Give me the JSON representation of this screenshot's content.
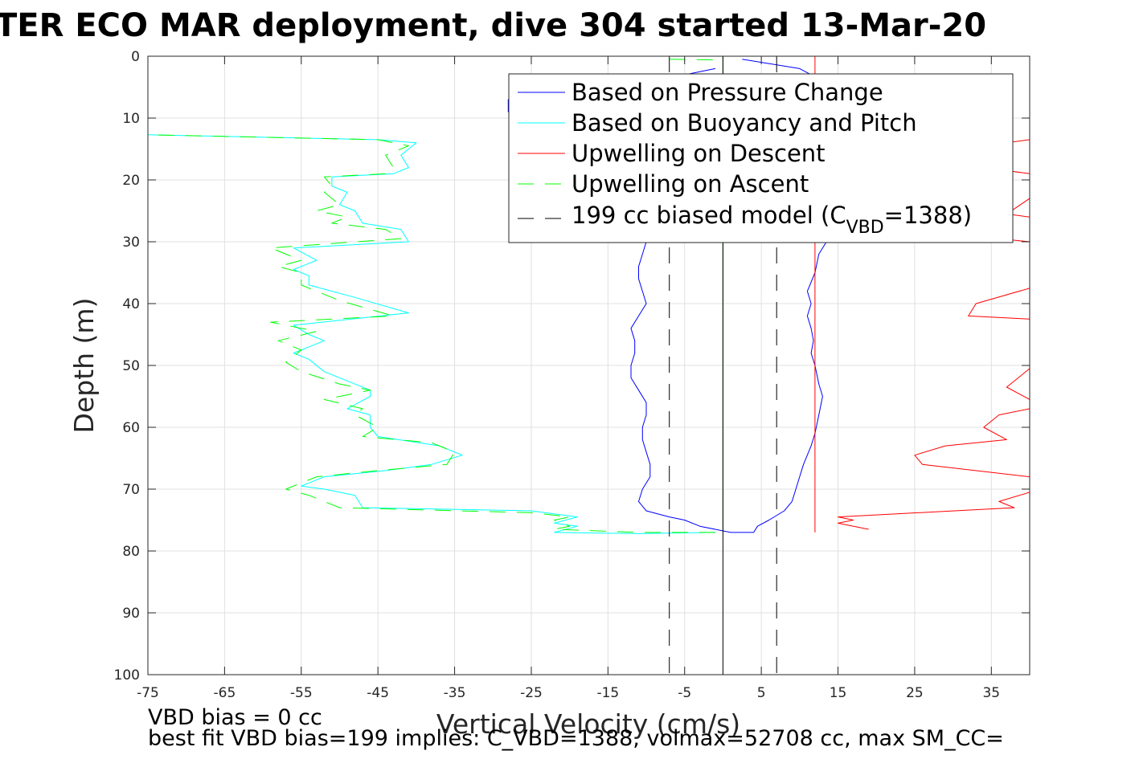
{
  "chart_data": {
    "type": "line",
    "title": "TER ECO MAR deployment, dive 304 started 13-Mar-20",
    "xlabel": "Vertical Velocity (cm/s)",
    "ylabel": "Depth (m)",
    "xlim": [
      -75,
      40
    ],
    "ylim": [
      0,
      100
    ],
    "y_reversed": true,
    "grid": true,
    "legend_placement": "top-right",
    "xticks": [
      "-75",
      "-65",
      "-55",
      "-45",
      "-35",
      "-25",
      "-15",
      "-5",
      "5",
      "15",
      "25",
      "35"
    ],
    "yticks": [
      "0",
      "10",
      "20",
      "30",
      "40",
      "50",
      "60",
      "70",
      "80",
      "90",
      "100"
    ],
    "legend": {
      "items": [
        "Based on Pressure Change",
        "Based on Buoyancy and Pitch",
        "Upwelling on Descent",
        "Upwelling on Ascent"
      ],
      "model_prefix": "199 cc biased model (C",
      "model_sub": "VBD",
      "model_suffix": "=1388)"
    },
    "notes": [
      "VBD bias = 0 cc",
      "best fit VBD bias=199 implies: C_VBD=1388, volmax=52708 cc, max SM_CC="
    ],
    "series": [
      {
        "name": "Based on Pressure Change",
        "color": "#0000ff",
        "style": "solid",
        "points": [
          [
            2.5,
            0.5
          ],
          [
            10,
            2
          ],
          [
            13,
            4
          ],
          [
            14,
            7
          ],
          [
            13,
            10
          ],
          [
            12,
            14
          ],
          [
            11.5,
            18
          ],
          [
            13,
            20
          ],
          [
            12.5,
            23
          ],
          [
            13.5,
            26
          ],
          [
            13,
            28
          ],
          [
            13.5,
            30
          ],
          [
            12.5,
            32
          ],
          [
            12,
            35
          ],
          [
            11,
            38
          ],
          [
            11.5,
            40
          ],
          [
            11,
            42
          ],
          [
            11.5,
            44
          ],
          [
            11.8,
            46
          ],
          [
            11.5,
            48
          ],
          [
            12,
            50
          ],
          [
            12.5,
            53
          ],
          [
            13,
            55
          ],
          [
            12.5,
            58
          ],
          [
            12,
            61
          ],
          [
            11.5,
            63
          ],
          [
            10.5,
            66
          ],
          [
            10,
            68
          ],
          [
            9.5,
            70
          ],
          [
            9,
            72
          ],
          [
            8,
            73.5
          ],
          [
            6,
            75
          ],
          [
            4.5,
            76
          ],
          [
            4,
            77
          ],
          [
            1,
            77
          ],
          [
            -3,
            76
          ],
          [
            -5,
            75
          ],
          [
            -7,
            74.5
          ],
          [
            -10,
            73.5
          ],
          [
            -11,
            72
          ],
          [
            -10.5,
            70
          ],
          [
            -9.5,
            68
          ],
          [
            -9.5,
            66
          ],
          [
            -10,
            64
          ],
          [
            -10.5,
            62
          ],
          [
            -10.5,
            60
          ],
          [
            -10,
            58
          ],
          [
            -10,
            56
          ],
          [
            -11,
            54
          ],
          [
            -12,
            52
          ],
          [
            -12,
            50
          ],
          [
            -11.5,
            48
          ],
          [
            -11.5,
            46
          ],
          [
            -12,
            44
          ],
          [
            -11,
            42
          ],
          [
            -10,
            40
          ],
          [
            -10.5,
            38
          ],
          [
            -11,
            36
          ],
          [
            -11,
            34
          ],
          [
            -10.5,
            32
          ],
          [
            -10,
            30
          ],
          [
            -8,
            28
          ],
          [
            -6,
            26
          ],
          [
            -5,
            24
          ],
          [
            -3,
            20
          ],
          [
            -5,
            16
          ],
          [
            -10,
            12
          ],
          [
            -20,
            10
          ],
          [
            -28,
            9
          ],
          [
            -28,
            7
          ],
          [
            -22,
            6
          ],
          [
            -15,
            5
          ],
          [
            -5,
            3
          ],
          [
            -1,
            2
          ]
        ]
      },
      {
        "name": "Based on Buoyancy and Pitch",
        "color": "#00ffff",
        "style": "solid",
        "points": [
          [
            -1,
            77
          ],
          [
            -11,
            77.2
          ],
          [
            -22,
            77
          ],
          [
            -19,
            76
          ],
          [
            -22,
            75.5
          ],
          [
            -19,
            74.5
          ],
          [
            -25,
            73.5
          ],
          [
            -47,
            73
          ],
          [
            -48,
            71
          ],
          [
            -52,
            70
          ],
          [
            -55,
            69.5
          ],
          [
            -52,
            68
          ],
          [
            -44,
            67
          ],
          [
            -38,
            66
          ],
          [
            -34,
            64.5
          ],
          [
            -37,
            63
          ],
          [
            -45,
            61.5
          ],
          [
            -46,
            60
          ],
          [
            -46,
            58
          ],
          [
            -49,
            57
          ],
          [
            -46,
            55
          ],
          [
            -46,
            54
          ],
          [
            -52,
            51
          ],
          [
            -54,
            49
          ],
          [
            -56,
            48
          ],
          [
            -52,
            46
          ],
          [
            -54,
            45
          ],
          [
            -56,
            43.5
          ],
          [
            -41,
            41.5
          ],
          [
            -48,
            39
          ],
          [
            -54,
            37
          ],
          [
            -54,
            35.5
          ],
          [
            -56,
            34.5
          ],
          [
            -53,
            33
          ],
          [
            -56,
            31
          ],
          [
            -41,
            30
          ],
          [
            -42,
            28
          ],
          [
            -47,
            27
          ],
          [
            -48,
            25
          ],
          [
            -50,
            24
          ],
          [
            -49,
            22
          ],
          [
            -51,
            21
          ],
          [
            -51,
            19.5
          ],
          [
            -43,
            19
          ],
          [
            -41,
            18
          ],
          [
            -42,
            16
          ],
          [
            -40,
            14
          ],
          [
            -45,
            13.5
          ],
          [
            -75,
            12.7
          ]
        ]
      },
      {
        "name": "Upwelling on Descent",
        "color": "#ff0000",
        "style": "solid",
        "points": [
          [
            12,
            77
          ],
          [
            12,
            73
          ],
          [
            12,
            67
          ],
          [
            12,
            60
          ],
          [
            12,
            50
          ],
          [
            12,
            44
          ],
          [
            12,
            39
          ],
          [
            12,
            32
          ],
          [
            12,
            26
          ],
          [
            12,
            20
          ],
          [
            12,
            14
          ],
          [
            12,
            8
          ],
          [
            12,
            0
          ]
        ]
      },
      {
        "name": "Upwelling on Descent (segment 2)",
        "color": "#ff0000",
        "style": "solid",
        "points": [
          [
            19,
            76.5
          ],
          [
            15,
            75.5
          ],
          [
            17,
            75
          ],
          [
            15,
            74.5
          ],
          [
            38,
            73
          ],
          [
            36,
            72
          ],
          [
            40,
            70.5
          ]
        ]
      },
      {
        "name": "Upwelling on Descent (segment 3)",
        "color": "#ff0000",
        "style": "solid",
        "points": [
          [
            40,
            68
          ],
          [
            26,
            66
          ],
          [
            25,
            64.5
          ],
          [
            29,
            63
          ],
          [
            37,
            62
          ],
          [
            34,
            60
          ],
          [
            36,
            58
          ],
          [
            40,
            57
          ]
        ]
      },
      {
        "name": "Upwelling on Descent (segment 4)",
        "color": "#ff0000",
        "style": "solid",
        "points": [
          [
            40,
            55.5
          ],
          [
            37,
            53.5
          ],
          [
            40,
            50.5
          ]
        ]
      },
      {
        "name": "Upwelling on Descent (segment 5)",
        "color": "#ff0000",
        "style": "solid",
        "points": [
          [
            40,
            42.5
          ],
          [
            32,
            42
          ],
          [
            33,
            40
          ],
          [
            40,
            37.5
          ]
        ]
      },
      {
        "name": "Upwelling on Descent (segment 6)",
        "color": "#ff0000",
        "style": "solid",
        "points": [
          [
            40,
            30
          ],
          [
            36,
            29.5
          ]
        ]
      },
      {
        "name": "Upwelling on Descent (segment 7)",
        "color": "#ff0000",
        "style": "solid",
        "points": [
          [
            40,
            26
          ],
          [
            37,
            25.5
          ],
          [
            40,
            23
          ]
        ]
      },
      {
        "name": "Upwelling on Descent (segment 8)",
        "color": "#ff0000",
        "style": "solid",
        "points": [
          [
            40,
            19
          ],
          [
            37,
            18.5
          ]
        ]
      },
      {
        "name": "Upwelling on Descent (segment 9)",
        "color": "#ff0000",
        "style": "solid",
        "points": [
          [
            40,
            13.5
          ],
          [
            37,
            14
          ]
        ]
      },
      {
        "name": "Upwelling on Ascent",
        "color": "#00ff00",
        "style": "dashed",
        "points": [
          [
            -1,
            77
          ],
          [
            -11,
            77
          ],
          [
            -22,
            76.5
          ],
          [
            -20,
            76
          ],
          [
            -22,
            75
          ],
          [
            -20,
            74.5
          ],
          [
            -25,
            73.8
          ],
          [
            -50,
            73
          ],
          [
            -54,
            71
          ],
          [
            -57,
            70
          ],
          [
            -53,
            68
          ],
          [
            -45,
            67
          ],
          [
            -36,
            66
          ],
          [
            -35,
            64
          ],
          [
            -38,
            62.5
          ],
          [
            -47,
            61.5
          ],
          [
            -45,
            60
          ],
          [
            -48,
            58
          ],
          [
            -47,
            57
          ],
          [
            -52,
            55.5
          ],
          [
            -46,
            54
          ],
          [
            -50,
            53
          ],
          [
            -55,
            51
          ],
          [
            -57,
            49.5
          ],
          [
            -55,
            47.5
          ],
          [
            -58,
            46
          ],
          [
            -53,
            44.5
          ],
          [
            -59,
            43
          ],
          [
            -43,
            42
          ],
          [
            -50,
            39.5
          ],
          [
            -53,
            38
          ],
          [
            -55,
            37
          ],
          [
            -55,
            35
          ],
          [
            -58,
            34
          ],
          [
            -55,
            33
          ],
          [
            -59,
            31
          ],
          [
            -42,
            29.5
          ],
          [
            -44,
            28
          ],
          [
            -51,
            27
          ],
          [
            -49,
            26
          ],
          [
            -53,
            25
          ],
          [
            -50,
            24
          ],
          [
            -52,
            22
          ],
          [
            -51,
            21
          ],
          [
            -52,
            19.5
          ],
          [
            -44,
            19
          ],
          [
            -43,
            18
          ],
          [
            -44,
            16
          ],
          [
            -41,
            14.5
          ],
          [
            -45,
            13.5
          ],
          [
            -75,
            12.7
          ]
        ]
      },
      {
        "name": "Upwelling on Ascent (surface)",
        "color": "#00ff00",
        "style": "dashed",
        "points": [
          [
            -7,
            0.5
          ],
          [
            0,
            0.6
          ]
        ]
      },
      {
        "name": "Upwelling on Ascent (zero line)",
        "color": "#00aa00",
        "style": "solid",
        "points": [
          [
            0,
            0
          ],
          [
            0,
            77
          ]
        ]
      },
      {
        "name": "199 cc biased model (C_VBD=1388)",
        "color": "#000000",
        "style": "dashed",
        "points": [
          [
            -7,
            0
          ],
          [
            -7,
            100
          ]
        ]
      },
      {
        "name": "199 cc biased model (C_VBD=1388) (+)",
        "color": "#000000",
        "style": "dashed",
        "points": [
          [
            7,
            0
          ],
          [
            7,
            100
          ]
        ]
      },
      {
        "name": "0 cc model",
        "color": "#000000",
        "style": "solid",
        "points": [
          [
            0,
            0
          ],
          [
            0,
            100
          ]
        ]
      }
    ]
  }
}
